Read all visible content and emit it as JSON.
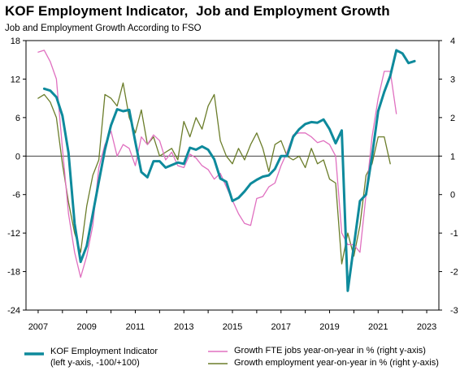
{
  "title": "KOF Employment Indicator,  Job and Employment Growth",
  "subtitle": "Job and Employment Growth According to FSO",
  "colors": {
    "kof": "#0e8a9c",
    "fte": "#e070c0",
    "employment": "#6b7d2a"
  },
  "legend": {
    "kof_line1": "KOF Employment Indicator",
    "kof_line2": "(left y-axis, -100/+100)",
    "fte": "Growth FTE jobs year-on-year in % (right y-axis)",
    "employment": "Growth employment year-on-year in % (right y-axis)"
  },
  "chart_data": {
    "type": "line",
    "x_range": [
      2006.5,
      2023.5
    ],
    "x_ticks": [
      "2007",
      "2009",
      "2011",
      "2013",
      "2015",
      "2017",
      "2019",
      "2021",
      "2023"
    ],
    "y_left": {
      "range": [
        -24,
        18
      ],
      "ticks": [
        "18",
        "12",
        "6",
        "0",
        "-6",
        "-12",
        "-18",
        "-24"
      ]
    },
    "y_right": {
      "range": [
        -3,
        4
      ],
      "ticks": [
        "4",
        "3",
        "2",
        "1",
        "0",
        "-1",
        "-2",
        "-3"
      ]
    },
    "grid": false,
    "legend_position": "bottom",
    "series": [
      {
        "name": "KOF Employment Indicator (left y-axis, -100/+100)",
        "axis": "left",
        "color": "#0e8a9c",
        "width": 3,
        "points": [
          [
            2007.25,
            10.5
          ],
          [
            2007.5,
            10.2
          ],
          [
            2007.75,
            9.2
          ],
          [
            2008.0,
            6.3
          ],
          [
            2008.25,
            0.5
          ],
          [
            2008.5,
            -10.5
          ],
          [
            2008.75,
            -16.5
          ],
          [
            2009.0,
            -14.0
          ],
          [
            2009.25,
            -9.0
          ],
          [
            2009.5,
            -4.0
          ],
          [
            2009.75,
            1.0
          ],
          [
            2010.0,
            4.8
          ],
          [
            2010.25,
            7.3
          ],
          [
            2010.5,
            7.0
          ],
          [
            2010.75,
            7.2
          ],
          [
            2011.0,
            2.2
          ],
          [
            2011.25,
            -2.5
          ],
          [
            2011.5,
            -3.3
          ],
          [
            2011.75,
            -0.8
          ],
          [
            2012.0,
            -0.8
          ],
          [
            2012.25,
            -1.8
          ],
          [
            2012.5,
            -1.4
          ],
          [
            2012.75,
            -1.0
          ],
          [
            2013.0,
            -1.2
          ],
          [
            2013.25,
            1.3
          ],
          [
            2013.5,
            1.0
          ],
          [
            2013.75,
            1.5
          ],
          [
            2014.0,
            1.0
          ],
          [
            2014.25,
            -0.5
          ],
          [
            2014.5,
            -3.5
          ],
          [
            2014.75,
            -4.0
          ],
          [
            2015.0,
            -7.0
          ],
          [
            2015.25,
            -6.5
          ],
          [
            2015.5,
            -5.5
          ],
          [
            2015.75,
            -4.3
          ],
          [
            2016.0,
            -3.7
          ],
          [
            2016.25,
            -3.2
          ],
          [
            2016.5,
            -3.0
          ],
          [
            2016.75,
            -2.0
          ],
          [
            2017.0,
            0.0
          ],
          [
            2017.25,
            0.0
          ],
          [
            2017.5,
            3.0
          ],
          [
            2017.75,
            4.2
          ],
          [
            2018.0,
            5.0
          ],
          [
            2018.25,
            5.3
          ],
          [
            2018.5,
            5.2
          ],
          [
            2018.75,
            5.7
          ],
          [
            2019.0,
            4.2
          ],
          [
            2019.25,
            2.0
          ],
          [
            2019.5,
            4.0
          ],
          [
            2019.75,
            -21.0
          ],
          [
            2020.0,
            -14.0
          ],
          [
            2020.25,
            -7.0
          ],
          [
            2020.5,
            -6.0
          ],
          [
            2020.75,
            0.0
          ],
          [
            2021.0,
            7.0
          ],
          [
            2021.25,
            10.0
          ],
          [
            2021.5,
            12.5
          ],
          [
            2021.75,
            16.5
          ],
          [
            2022.0,
            16.0
          ],
          [
            2022.25,
            14.5
          ],
          [
            2022.5,
            14.8
          ]
        ]
      },
      {
        "name": "Growth FTE jobs year-on-year in % (right y-axis)",
        "axis": "right",
        "color": "#e070c0",
        "width": 1.3,
        "points": [
          [
            2007.0,
            3.7
          ],
          [
            2007.25,
            3.75
          ],
          [
            2007.5,
            3.45
          ],
          [
            2007.75,
            3.0
          ],
          [
            2008.0,
            1.2
          ],
          [
            2008.25,
            -0.5
          ],
          [
            2008.5,
            -1.5
          ],
          [
            2008.75,
            -2.15
          ],
          [
            2009.0,
            -1.6
          ],
          [
            2009.25,
            -0.8
          ],
          [
            2009.5,
            0.7
          ],
          [
            2009.75,
            1.3
          ],
          [
            2010.0,
            1.65
          ],
          [
            2010.25,
            1.0
          ],
          [
            2010.5,
            1.3
          ],
          [
            2010.75,
            1.2
          ],
          [
            2011.0,
            0.75
          ],
          [
            2011.25,
            1.5
          ],
          [
            2011.5,
            1.3
          ],
          [
            2011.75,
            1.55
          ],
          [
            2012.0,
            1.4
          ],
          [
            2012.25,
            0.9
          ],
          [
            2012.5,
            1.1
          ],
          [
            2012.75,
            0.75
          ],
          [
            2013.0,
            0.7
          ],
          [
            2013.25,
            1.05
          ],
          [
            2013.5,
            0.95
          ],
          [
            2013.75,
            0.75
          ],
          [
            2014.0,
            0.65
          ],
          [
            2014.25,
            0.4
          ],
          [
            2014.5,
            0.55
          ],
          [
            2014.75,
            0.2
          ],
          [
            2015.0,
            -0.15
          ],
          [
            2015.25,
            -0.5
          ],
          [
            2015.5,
            -0.75
          ],
          [
            2015.75,
            -0.8
          ],
          [
            2016.0,
            -0.1
          ],
          [
            2016.25,
            -0.05
          ],
          [
            2016.5,
            0.2
          ],
          [
            2016.75,
            0.3
          ],
          [
            2017.0,
            0.75
          ],
          [
            2017.25,
            1.1
          ],
          [
            2017.5,
            1.55
          ],
          [
            2017.75,
            1.6
          ],
          [
            2018.0,
            1.6
          ],
          [
            2018.25,
            1.5
          ],
          [
            2018.5,
            1.35
          ],
          [
            2018.75,
            1.4
          ],
          [
            2019.0,
            1.3
          ],
          [
            2019.25,
            1.0
          ],
          [
            2019.5,
            -1.0
          ],
          [
            2019.75,
            -1.3
          ],
          [
            2020.0,
            -1.3
          ],
          [
            2020.25,
            -1.5
          ],
          [
            2020.5,
            0.0
          ],
          [
            2020.75,
            1.5
          ],
          [
            2021.0,
            2.5
          ],
          [
            2021.25,
            3.2
          ],
          [
            2021.5,
            3.2
          ],
          [
            2021.75,
            2.1
          ]
        ]
      },
      {
        "name": "Growth employment year-on-year in % (right y-axis)",
        "axis": "right",
        "color": "#6b7d2a",
        "width": 1.3,
        "points": [
          [
            2007.0,
            2.5
          ],
          [
            2007.25,
            2.6
          ],
          [
            2007.5,
            2.4
          ],
          [
            2007.75,
            2.0
          ],
          [
            2008.0,
            0.8
          ],
          [
            2008.25,
            -0.2
          ],
          [
            2008.5,
            -1.0
          ],
          [
            2008.75,
            -1.5
          ],
          [
            2009.0,
            -0.3
          ],
          [
            2009.25,
            0.5
          ],
          [
            2009.5,
            0.9
          ],
          [
            2009.75,
            2.6
          ],
          [
            2010.0,
            2.5
          ],
          [
            2010.25,
            2.3
          ],
          [
            2010.5,
            2.9
          ],
          [
            2010.75,
            2.0
          ],
          [
            2011.0,
            1.6
          ],
          [
            2011.25,
            2.2
          ],
          [
            2011.5,
            1.3
          ],
          [
            2011.75,
            1.5
          ],
          [
            2012.0,
            1.0
          ],
          [
            2012.25,
            1.1
          ],
          [
            2012.5,
            1.2
          ],
          [
            2012.75,
            0.9
          ],
          [
            2013.0,
            1.9
          ],
          [
            2013.25,
            1.5
          ],
          [
            2013.5,
            2.0
          ],
          [
            2013.75,
            1.7
          ],
          [
            2014.0,
            2.3
          ],
          [
            2014.25,
            2.6
          ],
          [
            2014.5,
            1.4
          ],
          [
            2014.75,
            1.0
          ],
          [
            2015.0,
            0.8
          ],
          [
            2015.25,
            1.2
          ],
          [
            2015.5,
            0.9
          ],
          [
            2015.75,
            1.3
          ],
          [
            2016.0,
            1.6
          ],
          [
            2016.25,
            1.2
          ],
          [
            2016.5,
            0.6
          ],
          [
            2016.75,
            1.3
          ],
          [
            2017.0,
            1.4
          ],
          [
            2017.25,
            1.0
          ],
          [
            2017.5,
            0.9
          ],
          [
            2017.75,
            1.0
          ],
          [
            2018.0,
            0.7
          ],
          [
            2018.25,
            1.2
          ],
          [
            2018.5,
            0.8
          ],
          [
            2018.75,
            0.9
          ],
          [
            2019.0,
            0.4
          ],
          [
            2019.25,
            0.3
          ],
          [
            2019.5,
            -1.8
          ],
          [
            2019.75,
            -1.0
          ],
          [
            2020.0,
            -1.6
          ],
          [
            2020.25,
            -0.8
          ],
          [
            2020.5,
            0.5
          ],
          [
            2020.75,
            0.8
          ],
          [
            2021.0,
            1.5
          ],
          [
            2021.25,
            1.5
          ],
          [
            2021.5,
            0.8
          ]
        ]
      }
    ]
  }
}
